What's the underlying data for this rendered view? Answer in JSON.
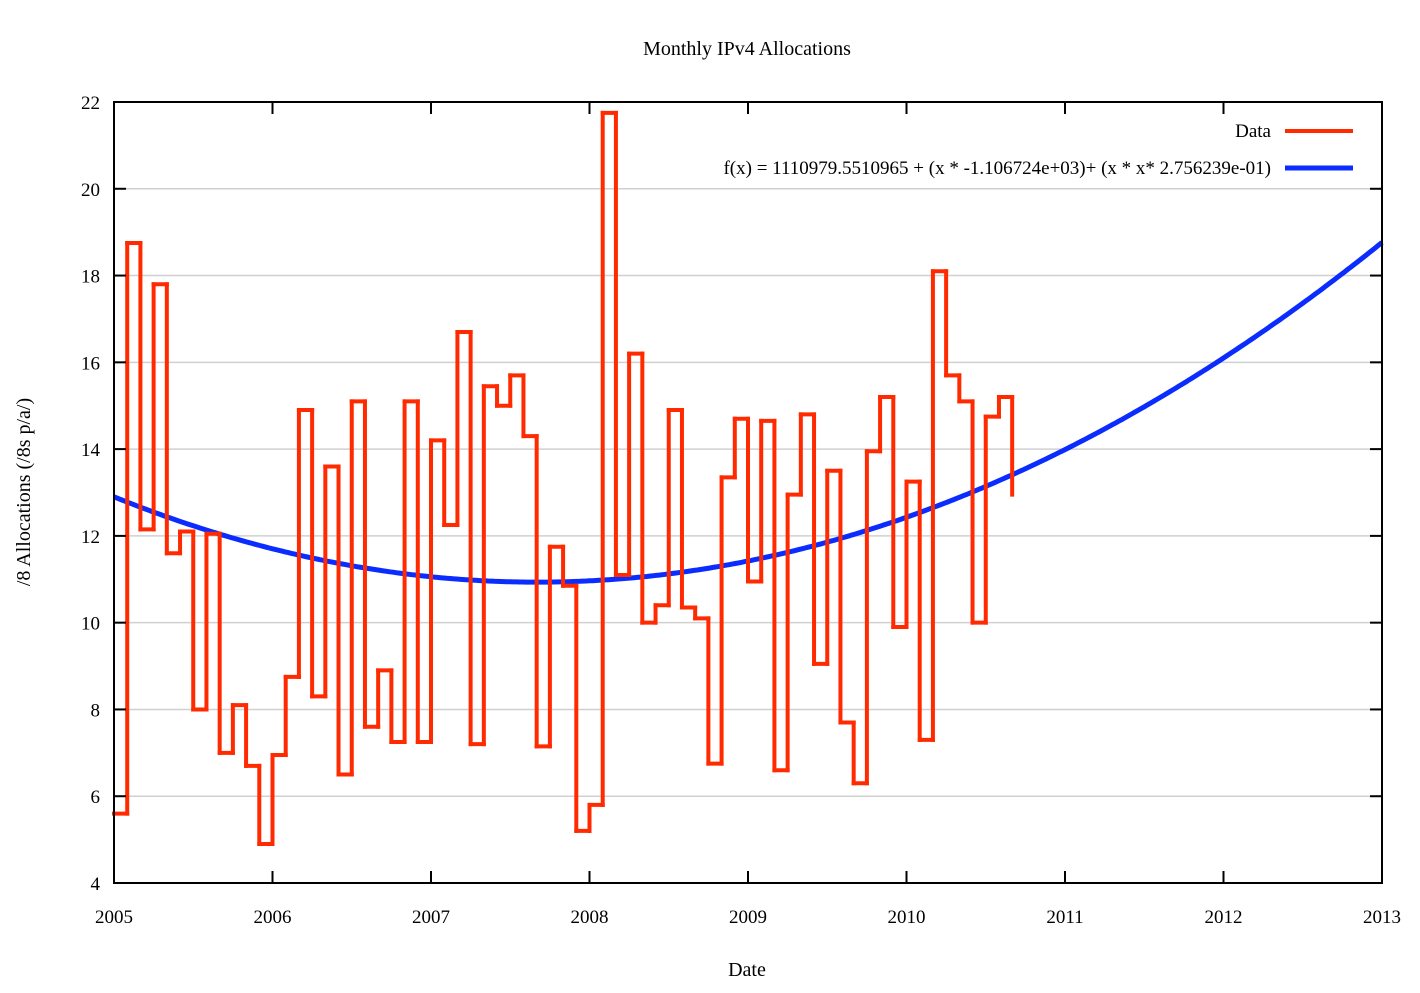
{
  "chart_data": {
    "type": "line",
    "title": "Monthly IPv4 Allocations",
    "xlabel": "Date",
    "ylabel": "/8 Allocations (/8s p/a/)",
    "xlim": [
      2005,
      2013
    ],
    "ylim": [
      4,
      22
    ],
    "x_ticks": [
      "2005",
      "2006",
      "2007",
      "2008",
      "2009",
      "2010",
      "2011",
      "2012",
      "2013"
    ],
    "y_ticks": [
      "4",
      "6",
      "8",
      "10",
      "12",
      "14",
      "16",
      "18",
      "20",
      "22"
    ],
    "grid": "horizontal",
    "legend_position": "top-right",
    "series": [
      {
        "name": "Data",
        "style": "steps",
        "color": "#ff2a00",
        "start_month": "2005-01",
        "values": [
          5.6,
          18.75,
          12.15,
          17.8,
          11.6,
          12.1,
          8.0,
          12.05,
          7.0,
          8.1,
          6.7,
          4.9,
          6.95,
          8.75,
          14.9,
          8.3,
          13.6,
          6.5,
          15.1,
          7.6,
          8.9,
          7.25,
          15.1,
          7.25,
          14.2,
          12.25,
          16.7,
          7.2,
          15.45,
          15.0,
          15.7,
          14.3,
          7.15,
          11.75,
          10.85,
          5.2,
          5.8,
          21.75,
          11.1,
          16.2,
          10.0,
          10.4,
          14.9,
          10.35,
          10.1,
          6.75,
          13.35,
          14.7,
          10.95,
          14.65,
          6.6,
          12.95,
          14.8,
          9.05,
          13.5,
          7.7,
          6.3,
          13.95,
          15.2,
          9.9,
          13.25,
          7.3,
          18.1,
          15.7,
          15.1,
          10.0,
          14.75,
          15.2,
          12.95
        ]
      },
      {
        "name": "f(x) = 1110979.5510965 + (x * -1.106724e+03)+ (x * x* 2.756239e-01)",
        "style": "line",
        "color": "#0a2cff",
        "coefficients": [
          1110979.5510965,
          -1106.724,
          0.2756239
        ]
      }
    ]
  }
}
